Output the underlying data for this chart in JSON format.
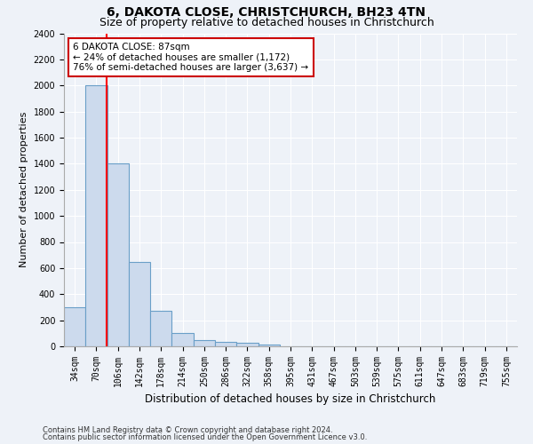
{
  "title1": "6, DAKOTA CLOSE, CHRISTCHURCH, BH23 4TN",
  "title2": "Size of property relative to detached houses in Christchurch",
  "xlabel": "Distribution of detached houses by size in Christchurch",
  "ylabel": "Number of detached properties",
  "categories": [
    "34sqm",
    "70sqm",
    "106sqm",
    "142sqm",
    "178sqm",
    "214sqm",
    "250sqm",
    "286sqm",
    "322sqm",
    "358sqm",
    "395sqm",
    "431sqm",
    "467sqm",
    "503sqm",
    "539sqm",
    "575sqm",
    "611sqm",
    "647sqm",
    "683sqm",
    "719sqm",
    "755sqm"
  ],
  "values": [
    300,
    2000,
    1400,
    650,
    270,
    100,
    50,
    35,
    25,
    15,
    0,
    0,
    0,
    0,
    0,
    0,
    0,
    0,
    0,
    0,
    0
  ],
  "bar_color": "#ccdaed",
  "bar_edge_color": "#6a9fc8",
  "red_line_x": 1.47,
  "annotation_text": "6 DAKOTA CLOSE: 87sqm\n← 24% of detached houses are smaller (1,172)\n76% of semi-detached houses are larger (3,637) →",
  "annotation_box_color": "#ffffff",
  "annotation_box_edge": "#cc0000",
  "ylim": [
    0,
    2400
  ],
  "yticks": [
    0,
    200,
    400,
    600,
    800,
    1000,
    1200,
    1400,
    1600,
    1800,
    2000,
    2200,
    2400
  ],
  "footer1": "Contains HM Land Registry data © Crown copyright and database right 2024.",
  "footer2": "Contains public sector information licensed under the Open Government Licence v3.0.",
  "background_color": "#eef2f8",
  "grid_color": "#ffffff",
  "title1_fontsize": 10,
  "title2_fontsize": 9,
  "ylabel_fontsize": 8,
  "xlabel_fontsize": 8.5,
  "tick_fontsize": 7,
  "annot_fontsize": 7.5,
  "footer_fontsize": 6
}
